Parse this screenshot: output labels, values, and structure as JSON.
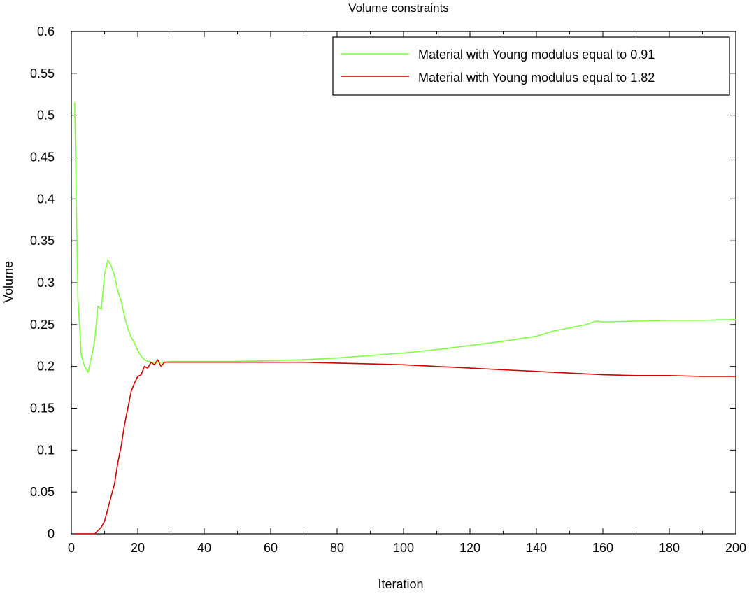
{
  "chart_data": {
    "type": "line",
    "title": "Volume constraints",
    "xlabel": "Iteration",
    "ylabel": "Volume",
    "xlim": [
      0,
      200
    ],
    "ylim": [
      0,
      0.6
    ],
    "xticks": [
      0,
      20,
      40,
      60,
      80,
      100,
      120,
      140,
      160,
      180,
      200
    ],
    "yticks": [
      0,
      0.05,
      0.1,
      0.15,
      0.2,
      0.25,
      0.3,
      0.35,
      0.4,
      0.45,
      0.5,
      0.55,
      0.6
    ],
    "xtick_labels": [
      "0",
      "20",
      "40",
      "60",
      "80",
      "100",
      "120",
      "140",
      "160",
      "180",
      "200"
    ],
    "ytick_labels": [
      "0",
      "0.05",
      "0.1",
      "0.15",
      "0.2",
      "0.25",
      "0.3",
      "0.35",
      "0.4",
      "0.45",
      "0.5",
      "0.55",
      "0.6"
    ],
    "grid": false,
    "legend_position": "top-right",
    "series": [
      {
        "name": "Material with Young modulus equal to 0.91",
        "color": "#7fff3f",
        "x": [
          1,
          2,
          3,
          4,
          5,
          6,
          7,
          8,
          9,
          10,
          11,
          12,
          13,
          14,
          15,
          16,
          17,
          18,
          19,
          20,
          21,
          22,
          23,
          24,
          25,
          26,
          27,
          28,
          30,
          35,
          40,
          50,
          60,
          70,
          80,
          90,
          100,
          110,
          120,
          130,
          140,
          145,
          150,
          155,
          158,
          160,
          170,
          180,
          190,
          200
        ],
        "y": [
          0.515,
          0.28,
          0.213,
          0.2,
          0.193,
          0.21,
          0.23,
          0.272,
          0.268,
          0.31,
          0.327,
          0.32,
          0.308,
          0.29,
          0.278,
          0.26,
          0.245,
          0.235,
          0.228,
          0.219,
          0.212,
          0.208,
          0.206,
          0.205,
          0.205,
          0.205,
          0.205,
          0.205,
          0.206,
          0.206,
          0.206,
          0.206,
          0.207,
          0.208,
          0.21,
          0.213,
          0.216,
          0.22,
          0.225,
          0.23,
          0.236,
          0.242,
          0.246,
          0.25,
          0.254,
          0.253,
          0.254,
          0.255,
          0.255,
          0.256
        ]
      },
      {
        "name": "Material with Young modulus equal to 1.82",
        "color": "#d40000",
        "x": [
          1,
          2,
          3,
          4,
          5,
          6,
          7,
          8,
          9,
          10,
          11,
          12,
          13,
          14,
          15,
          16,
          17,
          18,
          19,
          20,
          21,
          22,
          23,
          24,
          25,
          26,
          27,
          28,
          30,
          35,
          40,
          50,
          60,
          70,
          80,
          90,
          100,
          110,
          120,
          130,
          140,
          150,
          160,
          170,
          180,
          190,
          200
        ],
        "y": [
          0,
          0,
          0,
          0,
          0,
          0,
          0,
          0.004,
          0.008,
          0.015,
          0.03,
          0.045,
          0.06,
          0.085,
          0.105,
          0.13,
          0.15,
          0.17,
          0.18,
          0.188,
          0.19,
          0.2,
          0.198,
          0.205,
          0.202,
          0.208,
          0.2,
          0.205,
          0.205,
          0.205,
          0.205,
          0.205,
          0.205,
          0.205,
          0.204,
          0.203,
          0.202,
          0.2,
          0.198,
          0.196,
          0.194,
          0.192,
          0.19,
          0.189,
          0.189,
          0.188,
          0.188
        ]
      }
    ]
  }
}
